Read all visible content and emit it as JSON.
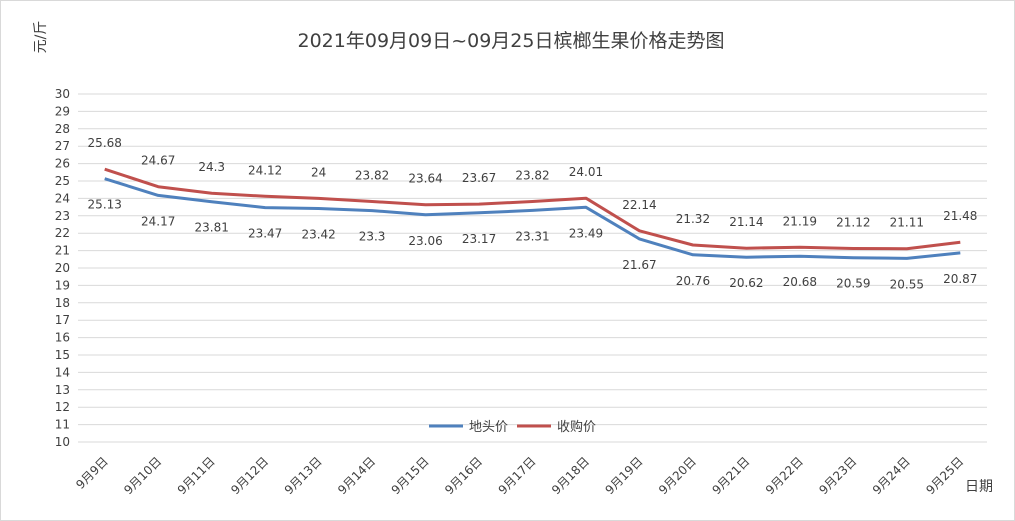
{
  "chart_data": {
    "type": "line",
    "title": "2021年09月09日~09月25日槟榔生果价格走势图",
    "ylabel": "元/斤",
    "xlabel": "日期",
    "ylim": [
      10,
      30
    ],
    "y_ticks": [
      10,
      11,
      12,
      13,
      14,
      15,
      16,
      17,
      18,
      19,
      20,
      21,
      22,
      23,
      24,
      25,
      26,
      27,
      28,
      29,
      30
    ],
    "grid": true,
    "legend_position": "bottom-center",
    "categories": [
      "9月9日",
      "9月10日",
      "9月11日",
      "9月12日",
      "9月13日",
      "9月14日",
      "9月15日",
      "9月16日",
      "9月17日",
      "9月18日",
      "9月19日",
      "9月20日",
      "9月21日",
      "9月22日",
      "9月23日",
      "9月24日",
      "9月25日"
    ],
    "series": [
      {
        "name": "地头价",
        "color": "#4f81bd",
        "label_position": "below",
        "values": [
          25.13,
          24.17,
          23.81,
          23.47,
          23.42,
          23.3,
          23.06,
          23.17,
          23.31,
          23.49,
          21.67,
          20.76,
          20.62,
          20.68,
          20.59,
          20.55,
          20.87
        ]
      },
      {
        "name": "收购价",
        "color": "#c0504d",
        "label_position": "above",
        "values": [
          25.68,
          24.67,
          24.3,
          24.12,
          24,
          23.82,
          23.64,
          23.67,
          23.82,
          24.01,
          22.14,
          21.32,
          21.14,
          21.19,
          21.12,
          21.11,
          21.48
        ]
      }
    ]
  }
}
